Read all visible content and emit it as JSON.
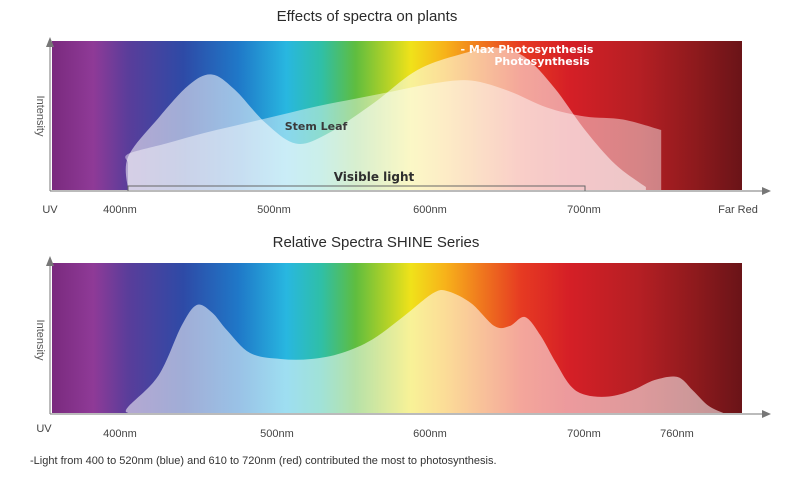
{
  "chart_data": [
    {
      "type": "area",
      "title": "Effects of spectra on plants",
      "ylabel": "Intensity",
      "x_tick_labels": [
        "UV",
        "400nm",
        "500nm",
        "600nm",
        "700nm",
        "Far Red"
      ],
      "xlim": [
        350,
        750
      ],
      "series": [
        {
          "name": "Stem Leaf",
          "x": [
            350,
            375,
            400,
            425,
            450,
            475,
            500,
            525,
            550,
            575,
            600,
            625,
            650,
            675,
            700,
            725,
            750
          ],
          "values": [
            0.12,
            0.18,
            0.24,
            0.31,
            0.38,
            0.44,
            0.5,
            0.56,
            0.61,
            0.66,
            0.71,
            0.73,
            0.66,
            0.55,
            0.49,
            0.47,
            0.4
          ]
        },
        {
          "name": "Max Photosynthesis",
          "x": [
            380,
            400,
            420,
            440,
            455,
            470,
            490,
            510,
            530,
            560,
            590,
            620,
            640,
            660,
            680,
            700,
            720,
            740
          ],
          "values": [
            0.0,
            0.22,
            0.48,
            0.7,
            0.77,
            0.67,
            0.45,
            0.31,
            0.37,
            0.57,
            0.8,
            0.91,
            0.95,
            0.89,
            0.68,
            0.4,
            0.17,
            0.02
          ]
        }
      ],
      "annotations": [
        "Stem Leaf",
        "- Max Photosynthesis",
        "Visible light"
      ],
      "visible_light_range": [
        400,
        700
      ]
    },
    {
      "type": "area",
      "title": "Relative Spectra SHINE Series",
      "ylabel": "Intensity",
      "x_tick_labels": [
        "UV",
        "400nm",
        "500nm",
        "600nm",
        "700nm",
        "760nm"
      ],
      "xlim": [
        350,
        800
      ],
      "series": [
        {
          "x": [
            380,
            400,
            420,
            435,
            445,
            455,
            465,
            480,
            500,
            520,
            540,
            560,
            580,
            600,
            610,
            625,
            640,
            650,
            660,
            670,
            680,
            690,
            700,
            715,
            730,
            745,
            760,
            770,
            780,
            790
          ],
          "values": [
            0.0,
            0.04,
            0.25,
            0.58,
            0.72,
            0.67,
            0.55,
            0.4,
            0.36,
            0.36,
            0.4,
            0.49,
            0.64,
            0.8,
            0.81,
            0.73,
            0.58,
            0.58,
            0.64,
            0.52,
            0.34,
            0.18,
            0.12,
            0.11,
            0.15,
            0.22,
            0.24,
            0.15,
            0.05,
            0.0
          ]
        }
      ]
    }
  ],
  "footnote": "-Light from 400 to 520nm (blue) and 610 to 720nm (red) contributed the most to photosynthesis."
}
